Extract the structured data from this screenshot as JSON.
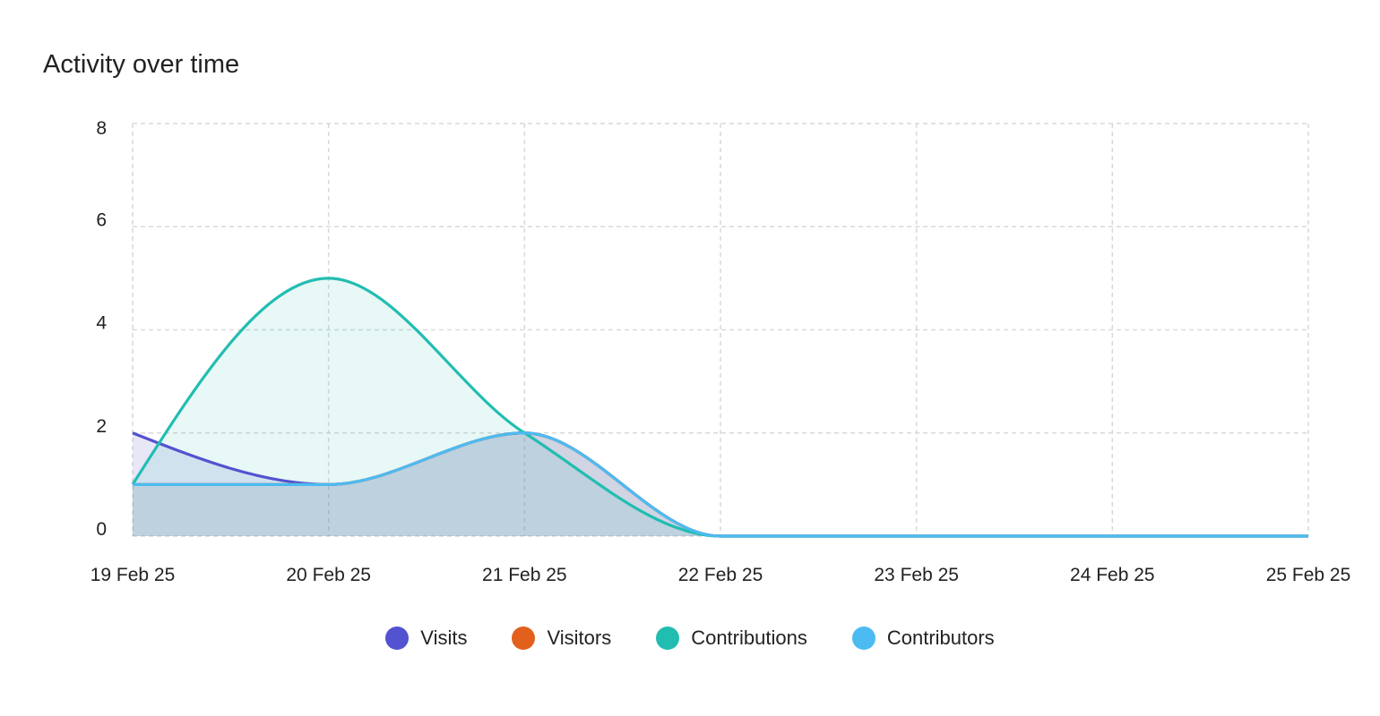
{
  "chart_data": {
    "type": "area",
    "title": "Activity over time",
    "x": [
      "19 Feb 25",
      "20 Feb 25",
      "21 Feb 25",
      "22 Feb 25",
      "23 Feb 25",
      "24 Feb 25",
      "25 Feb 25"
    ],
    "ylim": [
      0,
      8
    ],
    "yticks": [
      0,
      2,
      4,
      6,
      8
    ],
    "grid": true,
    "legend_position": "bottom",
    "series": [
      {
        "name": "Visits",
        "color": "#5352d0",
        "values": [
          2,
          1,
          2,
          0,
          0,
          0,
          0
        ]
      },
      {
        "name": "Visitors",
        "color": "#e35f1c",
        "values": [
          1,
          1,
          2,
          0,
          0,
          0,
          0
        ]
      },
      {
        "name": "Contributions",
        "color": "#22bdb1",
        "values": [
          1,
          5,
          2,
          0,
          0,
          0,
          0
        ]
      },
      {
        "name": "Contributors",
        "color": "#4cbbf2",
        "values": [
          1,
          1,
          2,
          0,
          0,
          0,
          0
        ]
      }
    ]
  }
}
